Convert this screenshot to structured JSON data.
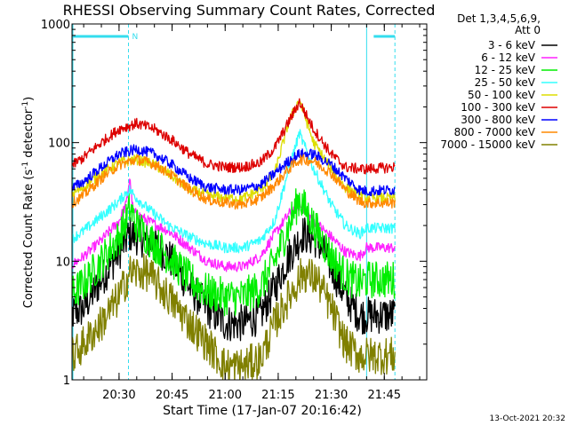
{
  "chart_data": {
    "type": "line",
    "title": "RHESSI Observing Summary Count Rates, Corrected",
    "xlabel": "Start Time (17-Jan-07 20:16:42)",
    "ylabel_main": "Corrected Count Rate (s",
    "ylabel_sup1": "-1",
    "ylabel_mid": " detector",
    "ylabel_sup2": "-1",
    "ylabel_end": ")",
    "yscale": "log",
    "ylim": [
      1,
      1000
    ],
    "yticks": [
      {
        "value": 1,
        "label": "1"
      },
      {
        "value": 10,
        "label": "10"
      },
      {
        "value": 100,
        "label": "100"
      },
      {
        "value": 1000,
        "label": "1000"
      }
    ],
    "xlim": [
      "20:16:42",
      "21:57:00"
    ],
    "xticks": [
      "20:30",
      "20:45",
      "21:00",
      "21:15",
      "21:30",
      "21:45"
    ],
    "legend_header": [
      "Det 1,3,4,5,6,9,",
      "Att 0"
    ],
    "legend_position": "right",
    "footer": "13-Oct-2021 20:32",
    "night_marker": "N",
    "night_intervals": [
      [
        "20:16:42",
        "20:32:40"
      ],
      [
        "21:42:00",
        "21:48:00"
      ]
    ],
    "night_color": "#33ddee",
    "event_lines": [
      "20:32:40",
      "21:40:00",
      "21:48:00"
    ],
    "series": [
      {
        "name": "3 - 6 keV",
        "color": "#000000",
        "x": [
          "20:16",
          "20:20",
          "20:25",
          "20:30",
          "20:33",
          "20:38",
          "20:44",
          "20:50",
          "20:55",
          "21:00",
          "21:05",
          "21:10",
          "21:14",
          "21:18",
          "21:22",
          "21:26",
          "21:30",
          "21:34",
          "21:38",
          "21:40",
          "21:48"
        ],
        "y": [
          3.5,
          4,
          7,
          12,
          17,
          15,
          11,
          6,
          4,
          3,
          3,
          3.5,
          6,
          11,
          17,
          15,
          9,
          5,
          3.5,
          3.5,
          3.5
        ]
      },
      {
        "name": "6 - 12 keV",
        "color": "#ff22ff",
        "x": [
          "20:16",
          "20:20",
          "20:25",
          "20:30",
          "20:32",
          "20:33",
          "20:34",
          "20:38",
          "20:44",
          "20:50",
          "20:55",
          "21:00",
          "21:05",
          "21:10",
          "21:14",
          "21:18",
          "21:21",
          "21:25",
          "21:30",
          "21:34",
          "21:38",
          "21:40",
          "21:48"
        ],
        "y": [
          9,
          11,
          15,
          22,
          30,
          50,
          26,
          22,
          18,
          13,
          10,
          9,
          9,
          11,
          17,
          25,
          30,
          22,
          16,
          12,
          11,
          13,
          13
        ]
      },
      {
        "name": "12 - 25 keV",
        "color": "#00ee00",
        "x": [
          "20:16",
          "20:20",
          "20:25",
          "20:30",
          "20:32",
          "20:33",
          "20:35",
          "20:38",
          "20:44",
          "20:50",
          "20:55",
          "21:00",
          "21:05",
          "21:10",
          "21:14",
          "21:18",
          "21:21",
          "21:25",
          "21:30",
          "21:34",
          "21:38",
          "21:40",
          "21:48"
        ],
        "y": [
          5,
          6.5,
          10,
          16,
          22,
          28,
          20,
          16,
          11,
          7,
          5.5,
          5,
          5,
          6,
          10,
          20,
          34,
          20,
          11,
          7.5,
          6.5,
          7,
          7
        ]
      },
      {
        "name": "25 - 50 keV",
        "color": "#33ffff",
        "x": [
          "20:16",
          "20:20",
          "20:25",
          "20:30",
          "20:32",
          "20:33",
          "20:35",
          "20:38",
          "20:44",
          "20:50",
          "20:55",
          "21:00",
          "21:05",
          "21:10",
          "21:14",
          "21:18",
          "21:21",
          "21:25",
          "21:30",
          "21:34",
          "21:38",
          "21:40",
          "21:48"
        ],
        "y": [
          15,
          18,
          24,
          32,
          38,
          40,
          34,
          28,
          20,
          16,
          14,
          13,
          13,
          15,
          22,
          60,
          120,
          60,
          30,
          20,
          17,
          19,
          19
        ]
      },
      {
        "name": "50 - 100 keV",
        "color": "#dddd00",
        "x": [
          "20:16",
          "20:20",
          "20:25",
          "20:30",
          "20:35",
          "20:40",
          "20:45",
          "20:50",
          "20:55",
          "21:00",
          "21:05",
          "21:10",
          "21:14",
          "21:18",
          "21:21",
          "21:25",
          "21:30",
          "21:34",
          "21:38",
          "21:40",
          "21:48"
        ],
        "y": [
          36,
          42,
          55,
          68,
          72,
          65,
          52,
          40,
          36,
          34,
          34,
          40,
          55,
          150,
          230,
          100,
          60,
          42,
          36,
          34,
          34
        ]
      },
      {
        "name": "100 - 300 keV",
        "color": "#dd0000",
        "x": [
          "20:16",
          "20:20",
          "20:25",
          "20:30",
          "20:35",
          "20:40",
          "20:45",
          "20:50",
          "20:55",
          "21:00",
          "21:05",
          "21:10",
          "21:14",
          "21:18",
          "21:21",
          "21:25",
          "21:30",
          "21:34",
          "21:38",
          "21:40",
          "21:48"
        ],
        "y": [
          62,
          75,
          100,
          130,
          145,
          130,
          105,
          80,
          66,
          62,
          62,
          68,
          90,
          150,
          220,
          130,
          80,
          62,
          60,
          60,
          62
        ]
      },
      {
        "name": "300 - 800 keV",
        "color": "#0000ff",
        "x": [
          "20:16",
          "20:20",
          "20:25",
          "20:30",
          "20:35",
          "20:40",
          "20:45",
          "20:50",
          "20:55",
          "21:00",
          "21:05",
          "21:10",
          "21:14",
          "21:18",
          "21:21",
          "21:25",
          "21:30",
          "21:34",
          "21:38",
          "21:40",
          "21:48"
        ],
        "y": [
          40,
          47,
          62,
          80,
          88,
          80,
          65,
          50,
          42,
          40,
          40,
          44,
          55,
          70,
          80,
          80,
          65,
          50,
          40,
          39,
          40
        ]
      },
      {
        "name": "800 - 7000 keV",
        "color": "#ff8800",
        "x": [
          "20:16",
          "20:20",
          "20:25",
          "20:30",
          "20:35",
          "20:40",
          "20:45",
          "20:50",
          "20:55",
          "21:00",
          "21:05",
          "21:10",
          "21:14",
          "21:18",
          "21:21",
          "21:25",
          "21:30",
          "21:34",
          "21:38",
          "21:40",
          "21:48"
        ],
        "y": [
          30,
          36,
          50,
          65,
          72,
          66,
          53,
          40,
          33,
          31,
          30,
          34,
          44,
          60,
          72,
          70,
          55,
          40,
          32,
          31,
          31
        ]
      },
      {
        "name": "7000 - 15000 keV",
        "color": "#808000",
        "x": [
          "20:16",
          "20:20",
          "20:25",
          "20:30",
          "20:33",
          "20:38",
          "20:44",
          "20:50",
          "20:55",
          "21:00",
          "21:05",
          "21:10",
          "21:14",
          "21:18",
          "21:22",
          "21:26",
          "21:30",
          "21:34",
          "21:38",
          "21:40",
          "21:48"
        ],
        "y": [
          1.5,
          2,
          3,
          5,
          8,
          8,
          5,
          3,
          2,
          1.3,
          1.3,
          1.5,
          3,
          5,
          8,
          7,
          4,
          2,
          1.6,
          1.6,
          1.6
        ]
      }
    ]
  }
}
